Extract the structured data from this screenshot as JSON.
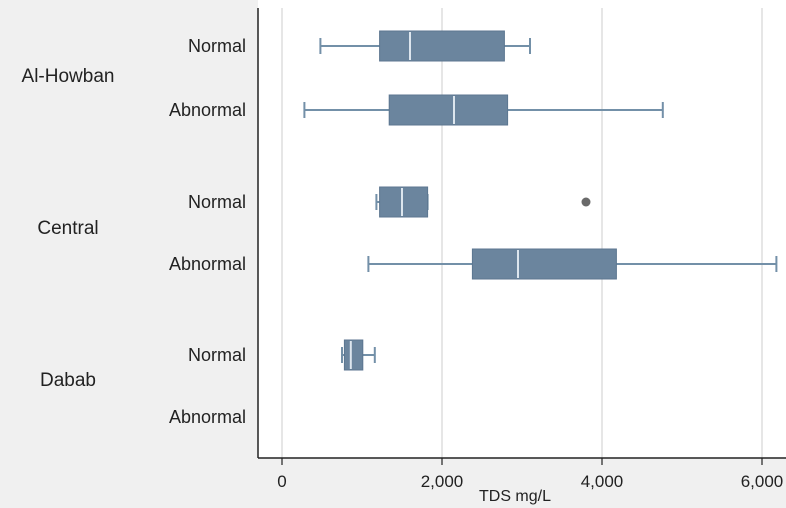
{
  "chart_data": {
    "type": "boxplot",
    "orientation": "horizontal",
    "xlabel": "TDS mg/L",
    "xlim": [
      -300,
      6300
    ],
    "x_ticks": [
      {
        "value": 0,
        "label": "0"
      },
      {
        "value": 2000,
        "label": "2,000"
      },
      {
        "value": 4000,
        "label": "4,000"
      },
      {
        "value": 6000,
        "label": "6,000"
      }
    ],
    "grid": true,
    "groups": [
      {
        "name": "Al-Howban",
        "rows": [
          {
            "label": "Normal",
            "whisker_low": 480,
            "q1": 1220,
            "median": 1600,
            "q3": 2780,
            "whisker_high": 3100,
            "outliers": []
          },
          {
            "label": "Abnormal",
            "whisker_low": 280,
            "q1": 1340,
            "median": 2150,
            "q3": 2820,
            "whisker_high": 4760,
            "outliers": []
          }
        ]
      },
      {
        "name": "Central",
        "rows": [
          {
            "label": "Normal",
            "whisker_low": 1180,
            "q1": 1220,
            "median": 1500,
            "q3": 1820,
            "whisker_high": 1820,
            "outliers": [
              3800
            ]
          },
          {
            "label": "Abnormal",
            "whisker_low": 1080,
            "q1": 2380,
            "median": 2950,
            "q3": 4180,
            "whisker_high": 6180,
            "outliers": []
          }
        ]
      },
      {
        "name": "Dabab",
        "rows": [
          {
            "label": "Normal",
            "whisker_low": 750,
            "q1": 780,
            "median": 860,
            "q3": 1010,
            "whisker_high": 1160,
            "outliers": []
          },
          {
            "label": "Abnormal",
            "whisker_low": null,
            "q1": null,
            "median": null,
            "q3": null,
            "whisker_high": null,
            "outliers": []
          }
        ]
      }
    ],
    "colors": {
      "box_fill": "#6b859e",
      "box_stroke": "#5c7690",
      "whisker": "#7390a8",
      "median": "#dde6ee",
      "outlier": "#6a6a6a",
      "panel_bg": "#f0f0f0",
      "gridline": "#e6e6e6",
      "axis": "#222222"
    }
  }
}
